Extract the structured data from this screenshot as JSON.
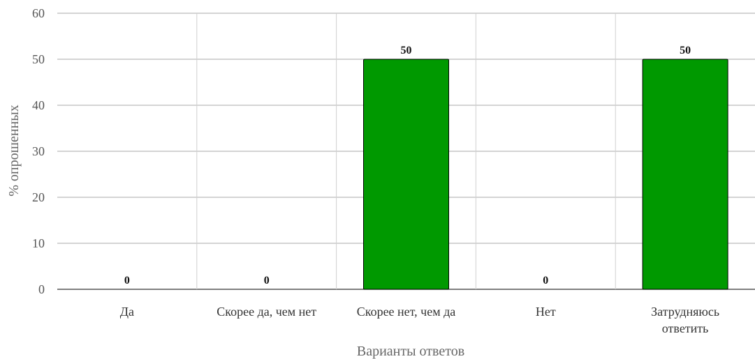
{
  "chart_data": {
    "type": "bar",
    "categories": [
      [
        "Да"
      ],
      [
        "Скорее да, чем нет"
      ],
      [
        "Скорее нет, чем да"
      ],
      [
        "Нет"
      ],
      [
        "Затрудняюсь",
        "ответить"
      ]
    ],
    "values": [
      0,
      0,
      50,
      0,
      50
    ],
    "data_labels": [
      "0",
      "0",
      "50",
      "0",
      "50"
    ],
    "xlabel": "Варианты ответов",
    "ylabel": "% опрошенных",
    "ylim": [
      0,
      60
    ],
    "yticks": [
      0,
      10,
      20,
      30,
      40,
      50,
      60
    ],
    "grid": true,
    "bar_color": "#009900",
    "bar_border_color": "#000000",
    "grid_color": "#d0d0d0"
  }
}
